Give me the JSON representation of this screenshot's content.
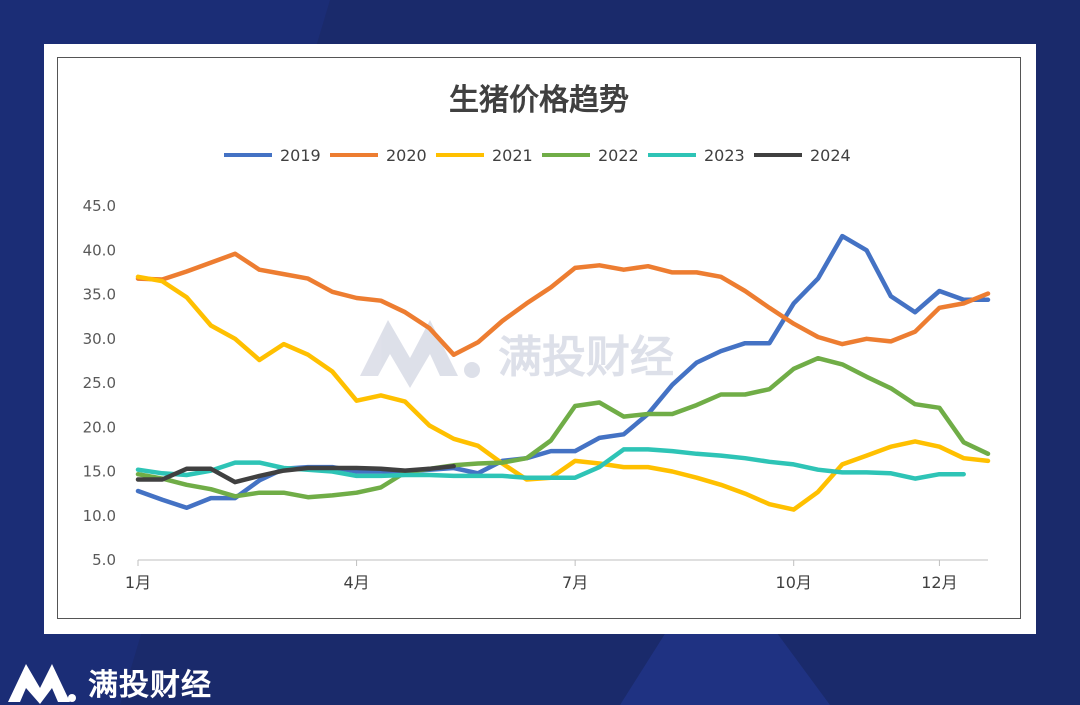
{
  "brand": {
    "name": "满投财经",
    "watermark": "满投财经"
  },
  "colors": {
    "background": "#1a2a6b",
    "card": "#ffffff"
  },
  "chart_data": {
    "type": "line",
    "title": "生猪价格趋势",
    "legend_position": "top",
    "grid": false,
    "ylim": [
      5,
      45
    ],
    "yticks": [
      "45.0",
      "40.0",
      "35.0",
      "30.0",
      "25.0",
      "20.0",
      "15.0",
      "10.0",
      "5.0"
    ],
    "xlabels": [
      {
        "label": "1月",
        "pos": 0
      },
      {
        "label": "4月",
        "pos": 9
      },
      {
        "label": "7月",
        "pos": 18
      },
      {
        "label": "10月",
        "pos": 27
      },
      {
        "label": "12月",
        "pos": 33
      }
    ],
    "xrange": [
      0,
      35
    ],
    "series": [
      {
        "name": "2019",
        "color": "#4472c4",
        "values": [
          12.8,
          11.8,
          10.9,
          12.0,
          12.0,
          14.0,
          15.3,
          15.5,
          15.5,
          15.0,
          15.0,
          15.0,
          15.2,
          15.4,
          14.8,
          16.2,
          16.5,
          17.3,
          17.3,
          18.8,
          19.2,
          21.5,
          24.8,
          27.3,
          28.6,
          29.5,
          29.5,
          34.0,
          36.8,
          41.6,
          40.0,
          34.8,
          33.0,
          35.4,
          34.4,
          34.4
        ]
      },
      {
        "name": "2020",
        "color": "#ed7d31",
        "values": [
          36.8,
          36.7,
          37.6,
          38.6,
          39.6,
          37.8,
          37.3,
          36.8,
          35.3,
          34.6,
          34.3,
          33.0,
          31.2,
          28.2,
          29.6,
          32.0,
          34.0,
          35.8,
          38.0,
          38.3,
          37.8,
          38.2,
          37.5,
          37.5,
          37.0,
          35.4,
          33.5,
          31.7,
          30.2,
          29.4,
          30.0,
          29.7,
          30.8,
          33.5,
          34.0,
          35.1
        ]
      },
      {
        "name": "2021",
        "color": "#ffc000",
        "values": [
          37.0,
          36.5,
          34.7,
          31.5,
          30.0,
          27.6,
          29.4,
          28.2,
          26.3,
          23.0,
          23.6,
          22.9,
          20.2,
          18.7,
          17.9,
          15.9,
          14.1,
          14.3,
          16.2,
          15.9,
          15.5,
          15.5,
          15.0,
          14.3,
          13.5,
          12.5,
          11.3,
          10.7,
          12.7,
          15.8,
          16.8,
          17.8,
          18.4,
          17.8,
          16.5,
          16.2
        ]
      },
      {
        "name": "2022",
        "color": "#70ad47",
        "values": [
          14.7,
          14.2,
          13.5,
          13.0,
          12.2,
          12.6,
          12.6,
          12.1,
          12.3,
          12.6,
          13.2,
          14.9,
          15.3,
          15.7,
          15.9,
          16.0,
          16.5,
          18.5,
          22.4,
          22.8,
          21.2,
          21.5,
          21.5,
          22.5,
          23.7,
          23.7,
          24.3,
          26.6,
          27.8,
          27.1,
          25.7,
          24.4,
          22.6,
          22.2,
          18.3,
          17.0
        ]
      },
      {
        "name": "2023",
        "color": "#2ec4b6",
        "values": [
          15.2,
          14.8,
          14.6,
          15.1,
          16.0,
          16.0,
          15.4,
          15.2,
          15.0,
          14.5,
          14.5,
          14.6,
          14.6,
          14.5,
          14.5,
          14.5,
          14.3,
          14.3,
          14.3,
          15.5,
          17.5,
          17.5,
          17.3,
          17.0,
          16.8,
          16.5,
          16.1,
          15.8,
          15.2,
          14.9,
          14.9,
          14.8,
          14.2,
          14.7,
          14.7
        ]
      },
      {
        "name": "2024",
        "color": "#404040",
        "values": [
          14.1,
          14.1,
          15.3,
          15.3,
          13.8,
          14.5,
          15.1,
          15.4,
          15.4,
          15.4,
          15.3,
          15.1,
          15.3,
          15.6
        ]
      }
    ]
  }
}
